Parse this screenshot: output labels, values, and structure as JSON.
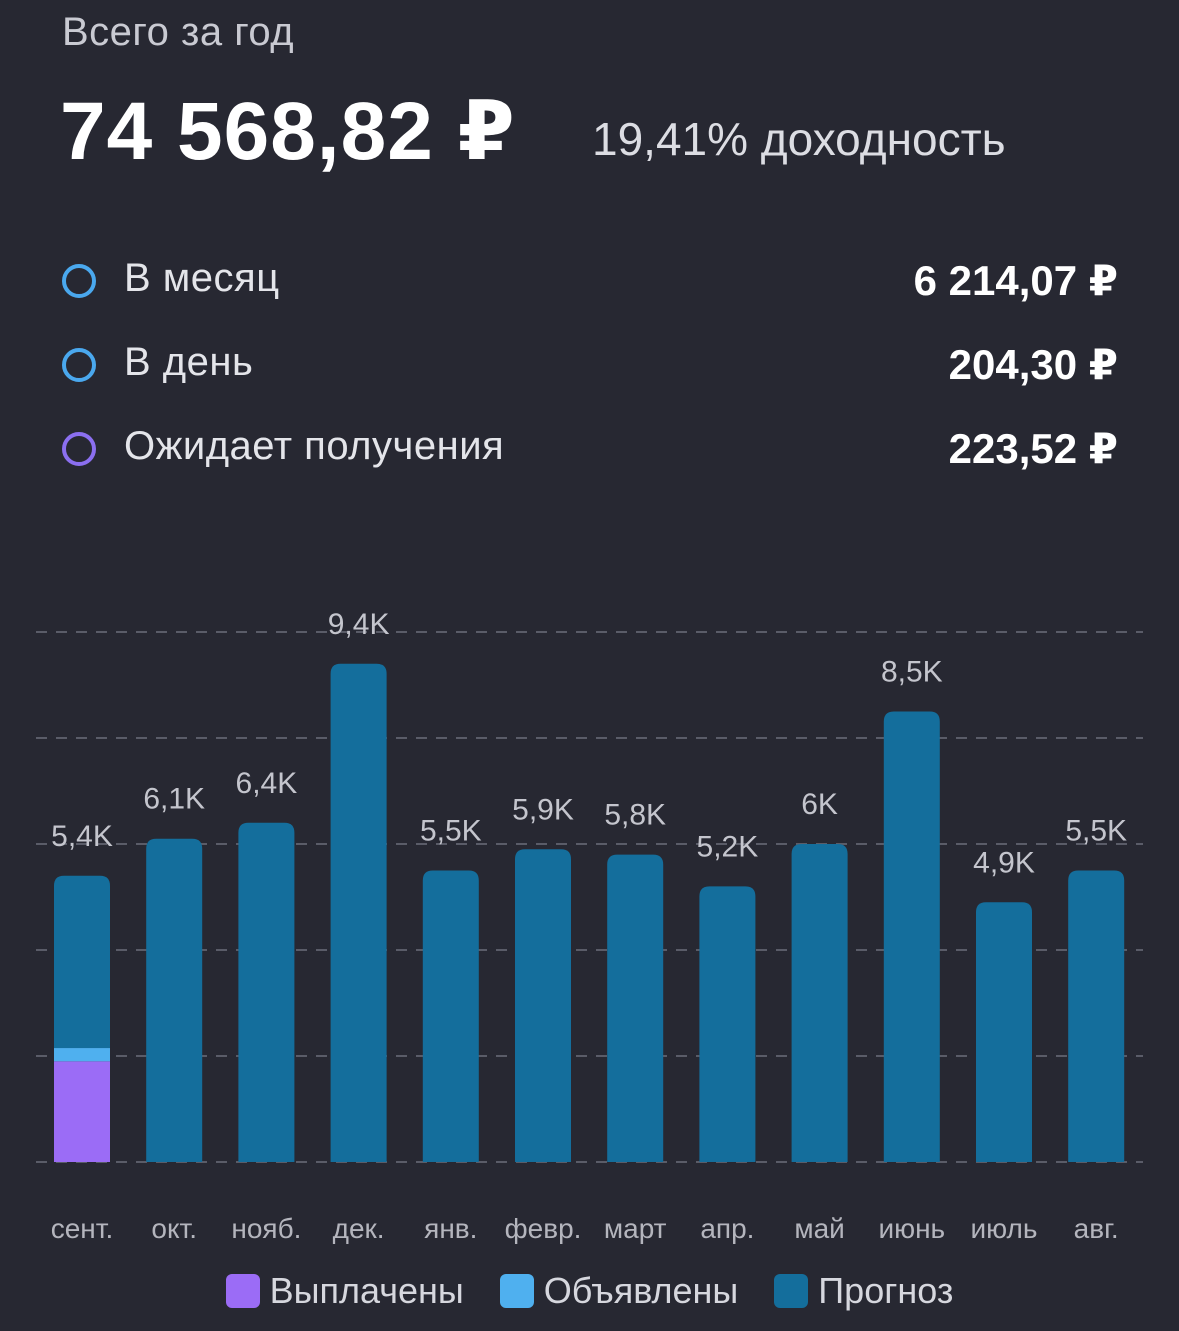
{
  "header": {
    "subtitle": "Всего за год",
    "total": "74 568,82 ₽",
    "yield_text": "19,41% доходность"
  },
  "stats": [
    {
      "label": "В месяц",
      "value": "6 214,07 ₽",
      "ring_color": "#4aa8ee"
    },
    {
      "label": "В день",
      "value": "204,30 ₽",
      "ring_color": "#4aa8ee"
    },
    {
      "label": "Ожидает получения",
      "value": "223,52 ₽",
      "ring_color": "#8b6ff0"
    }
  ],
  "chart_data": {
    "type": "bar",
    "stacked": true,
    "categories": [
      "сент.",
      "окт.",
      "нояб.",
      "дек.",
      "янв.",
      "февр.",
      "март",
      "апр.",
      "май",
      "июнь",
      "июль",
      "авг."
    ],
    "value_labels": [
      "5,4K",
      "6,1K",
      "6,4K",
      "9,4K",
      "5,5K",
      "5,9K",
      "5,8K",
      "5,2K",
      "6K",
      "8,5K",
      "4,9K",
      "5,5K"
    ],
    "series": [
      {
        "name": "Выплачены",
        "color": "#9b6cf6",
        "values": [
          1900,
          0,
          0,
          0,
          0,
          0,
          0,
          0,
          0,
          0,
          0,
          0
        ]
      },
      {
        "name": "Объявлены",
        "color": "#4fb0ef",
        "values": [
          250,
          0,
          0,
          0,
          0,
          0,
          0,
          0,
          0,
          0,
          0,
          0
        ]
      },
      {
        "name": "Прогноз",
        "color": "#146e9c",
        "values": [
          3250,
          6100,
          6400,
          9400,
          5500,
          5900,
          5800,
          5200,
          6000,
          8500,
          4900,
          5500
        ]
      }
    ],
    "ylim": [
      0,
      10000
    ],
    "gridlines": [
      0,
      2000,
      4000,
      6000,
      8000,
      10000
    ],
    "grid": true,
    "legend_position": "bottom"
  }
}
